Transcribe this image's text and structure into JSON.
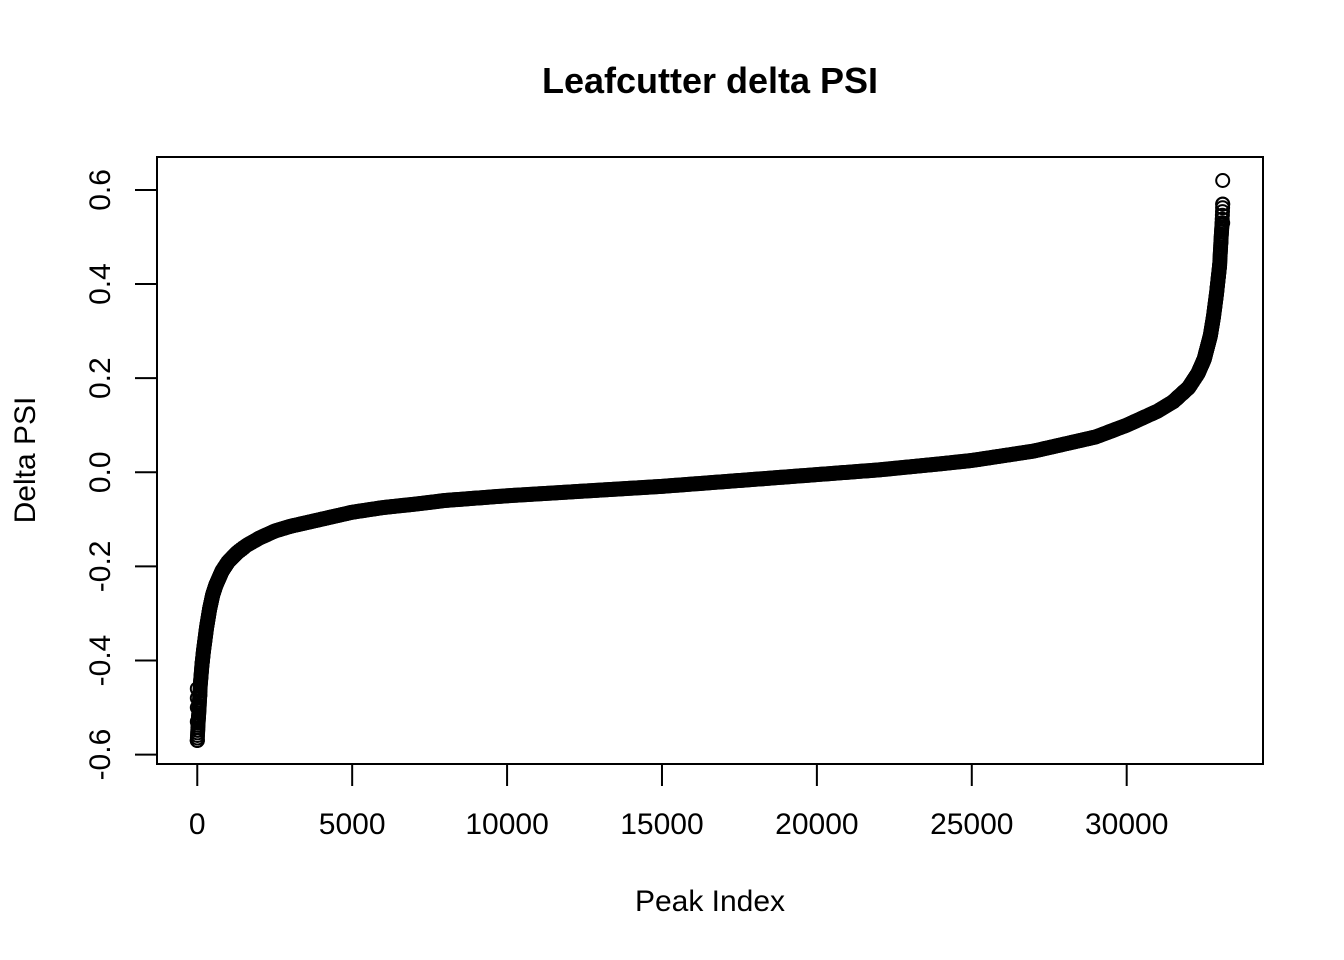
{
  "chart_data": {
    "type": "scatter",
    "title": "Leafcutter delta PSI",
    "xlabel": "Peak Index",
    "ylabel": "Delta PSI",
    "xlim": [
      -1300,
      34400
    ],
    "ylim": [
      -0.62,
      0.67
    ],
    "x_ticks": [
      0,
      5000,
      10000,
      15000,
      20000,
      25000,
      30000
    ],
    "x_tick_labels": [
      "0",
      "5000",
      "10000",
      "15000",
      "20000",
      "25000",
      "30000"
    ],
    "y_ticks": [
      -0.6,
      -0.4,
      -0.2,
      0.0,
      0.2,
      0.4,
      0.6
    ],
    "y_tick_labels": [
      "-0.6",
      "-0.4",
      "-0.2",
      "0.0",
      "0.2",
      "0.4",
      "0.6"
    ],
    "grid": false,
    "marker": "open-circle",
    "color": "#000000",
    "n_points": 33100,
    "curve": {
      "description_points_x": [
        0,
        30,
        60,
        100,
        150,
        200,
        300,
        400,
        500,
        600,
        800,
        1000,
        1300,
        1600,
        2000,
        2500,
        3000,
        4000,
        5000,
        6000,
        7000,
        8000,
        10000,
        12000,
        14000,
        15000,
        17000,
        18000,
        20000,
        22000,
        24000,
        25000,
        26000,
        27000,
        28000,
        29000,
        30000,
        30500,
        31000,
        31500,
        32000,
        32300,
        32500,
        32700,
        32800,
        32900,
        33000,
        33050,
        33080,
        33100
      ],
      "description_points_y": [
        -0.57,
        -0.53,
        -0.5,
        -0.45,
        -0.41,
        -0.38,
        -0.33,
        -0.29,
        -0.26,
        -0.24,
        -0.21,
        -0.19,
        -0.17,
        -0.155,
        -0.14,
        -0.125,
        -0.115,
        -0.1,
        -0.085,
        -0.075,
        -0.068,
        -0.06,
        -0.05,
        -0.042,
        -0.034,
        -0.03,
        -0.02,
        -0.015,
        -0.005,
        0.005,
        0.018,
        0.025,
        0.035,
        0.045,
        0.06,
        0.075,
        0.1,
        0.115,
        0.13,
        0.15,
        0.18,
        0.21,
        0.24,
        0.29,
        0.33,
        0.38,
        0.44,
        0.5,
        0.53,
        0.57
      ]
    },
    "outliers": [
      {
        "x": 33100,
        "y": 0.62
      },
      {
        "x": 33100,
        "y": 0.57
      },
      {
        "x": 33100,
        "y": 0.53
      },
      {
        "x": 0,
        "y": -0.57
      },
      {
        "x": 0,
        "y": -0.53
      },
      {
        "x": 0,
        "y": -0.5
      },
      {
        "x": 0,
        "y": -0.48
      },
      {
        "x": 0,
        "y": -0.46
      }
    ]
  }
}
